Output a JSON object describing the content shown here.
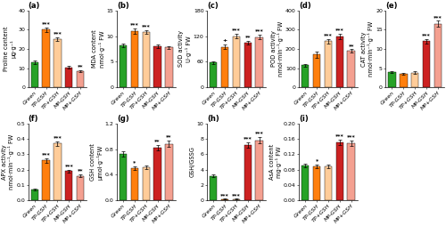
{
  "chart_data": [
    {
      "type": "bar",
      "title": "(a)",
      "y_label": "Proline content\nμg·g⁻¹",
      "categories": [
        "Green",
        "TP-GSH",
        "TP+GSH",
        "MP-GSH",
        "MP+GSH"
      ],
      "values": [
        13,
        30,
        25,
        10.5,
        8.5
      ],
      "errors": [
        0.8,
        1.0,
        1.0,
        0.5,
        0.5
      ],
      "colors": [
        "#27a227",
        "#ff7f0e",
        "#ffcc99",
        "#cc2222",
        "#f4a090"
      ],
      "ylim": [
        0,
        40
      ],
      "yticks": [
        0,
        10,
        20,
        30,
        40
      ],
      "annotations": [
        {
          "category": "TP-GSH",
          "text": "***"
        },
        {
          "category": "TP+GSH",
          "text": "***"
        },
        {
          "category": "MP+GSH",
          "text": "**"
        }
      ]
    },
    {
      "type": "bar",
      "title": "(b)",
      "y_label": "MDA content\nnmol·g⁻¹ FW",
      "categories": [
        "Green",
        "TP-GSH",
        "TP+GSH",
        "MP-GSH",
        "MP+GSH"
      ],
      "values": [
        8.2,
        11.0,
        10.8,
        8.0,
        7.8
      ],
      "errors": [
        0.4,
        0.5,
        0.4,
        0.4,
        0.3
      ],
      "colors": [
        "#27a227",
        "#ff7f0e",
        "#ffcc99",
        "#cc2222",
        "#f4a090"
      ],
      "ylim": [
        0,
        15
      ],
      "yticks": [
        0,
        5,
        10,
        15
      ],
      "annotations": [
        {
          "category": "TP-GSH",
          "text": "***"
        },
        {
          "category": "TP+GSH",
          "text": "***"
        }
      ]
    },
    {
      "type": "bar",
      "title": "(c)",
      "y_label": "SOD activity\nU·g⁻¹ FW",
      "categories": [
        "Green",
        "TP-GSH",
        "TP+GSH",
        "MP-GSH",
        "MP+GSH"
      ],
      "values": [
        58,
        95,
        120,
        105,
        118
      ],
      "errors": [
        3,
        5,
        5,
        4,
        5
      ],
      "colors": [
        "#27a227",
        "#ff7f0e",
        "#ffcc99",
        "#cc2222",
        "#f4a090"
      ],
      "ylim": [
        0,
        180
      ],
      "yticks": [
        0,
        60,
        120,
        180
      ],
      "annotations": [
        {
          "category": "TP-GSH",
          "text": "+"
        },
        {
          "category": "TP+GSH",
          "text": "***"
        },
        {
          "category": "MP-GSH",
          "text": "**"
        },
        {
          "category": "MP+GSH",
          "text": "***"
        }
      ]
    },
    {
      "type": "bar",
      "title": "(d)",
      "y_label": "POD activity\nnmol·min⁻¹·g⁻¹ FW",
      "categories": [
        "Green",
        "TP-GSH",
        "TP+GSH",
        "MP-GSH",
        "MP+GSH"
      ],
      "values": [
        115,
        170,
        240,
        265,
        190
      ],
      "errors": [
        8,
        15,
        12,
        12,
        8
      ],
      "colors": [
        "#27a227",
        "#ff7f0e",
        "#ffcc99",
        "#cc2222",
        "#f4a090"
      ],
      "ylim": [
        0,
        400
      ],
      "yticks": [
        0,
        100,
        200,
        300,
        400
      ],
      "annotations": [
        {
          "category": "TP+GSH",
          "text": "***"
        },
        {
          "category": "MP-GSH",
          "text": "***"
        },
        {
          "category": "MP+GSH",
          "text": "**"
        }
      ]
    },
    {
      "type": "bar",
      "title": "(e)",
      "y_label": "CAT activity\nnmol·min⁻¹·g⁻¹ FW",
      "categories": [
        "Green",
        "TP-GSH",
        "TP+GSH",
        "MP-GSH",
        "MP+GSH"
      ],
      "values": [
        4.0,
        3.5,
        3.8,
        12.0,
        16.5
      ],
      "errors": [
        0.3,
        0.2,
        0.3,
        0.6,
        0.8
      ],
      "colors": [
        "#27a227",
        "#ff7f0e",
        "#ffcc99",
        "#cc2222",
        "#f4a090"
      ],
      "ylim": [
        0,
        20
      ],
      "yticks": [
        0,
        5,
        10,
        15,
        20
      ],
      "annotations": [
        {
          "category": "MP-GSH",
          "text": "***"
        },
        {
          "category": "MP+GSH",
          "text": "***"
        }
      ]
    },
    {
      "type": "bar",
      "title": "(f)",
      "y_label": "APX activity\nnmol·min⁻¹·g⁻¹ FW",
      "categories": [
        "Green",
        "TP-GSH",
        "TP+GSH",
        "MP-GSH",
        "MP+GSH"
      ],
      "values": [
        0.07,
        0.26,
        0.37,
        0.19,
        0.16
      ],
      "errors": [
        0.005,
        0.015,
        0.015,
        0.01,
        0.01
      ],
      "colors": [
        "#27a227",
        "#ff7f0e",
        "#ffcc99",
        "#cc2222",
        "#f4a090"
      ],
      "ylim": [
        0,
        0.5
      ],
      "yticks": [
        0.0,
        0.1,
        0.2,
        0.3,
        0.4,
        0.5
      ],
      "annotations": [
        {
          "category": "TP-GSH",
          "text": "***"
        },
        {
          "category": "TP+GSH",
          "text": "***"
        },
        {
          "category": "MP-GSH",
          "text": "***"
        },
        {
          "category": "MP+GSH",
          "text": "**"
        }
      ]
    },
    {
      "type": "bar",
      "title": "(g)",
      "y_label": "GSH content\nμmol·g⁻¹FW",
      "categories": [
        "Green",
        "TP-GSH",
        "TP+GSH",
        "MP-GSH",
        "MP+GSH"
      ],
      "values": [
        0.72,
        0.5,
        0.52,
        0.82,
        0.88
      ],
      "errors": [
        0.04,
        0.03,
        0.03,
        0.04,
        0.05
      ],
      "colors": [
        "#27a227",
        "#ff7f0e",
        "#ffcc99",
        "#cc2222",
        "#f4a090"
      ],
      "ylim": [
        0,
        1.2
      ],
      "yticks": [
        0.0,
        0.4,
        0.8,
        1.2
      ],
      "annotations": [
        {
          "category": "TP-GSH",
          "text": "*"
        },
        {
          "category": "MP-GSH",
          "text": "**"
        },
        {
          "category": "MP+GSH",
          "text": "**"
        }
      ]
    },
    {
      "type": "bar",
      "title": "(h)",
      "y_label": "GSH/GSSG",
      "categories": [
        "Green",
        "TP-GSH",
        "TP+GSH",
        "MP-GSH",
        "MP+GSH"
      ],
      "values": [
        3.2,
        0.15,
        0.15,
        7.2,
        7.8
      ],
      "errors": [
        0.2,
        0.05,
        0.05,
        0.4,
        0.4
      ],
      "colors": [
        "#27a227",
        "#ff7f0e",
        "#ffcc99",
        "#cc2222",
        "#f4a090"
      ],
      "ylim": [
        0,
        10
      ],
      "yticks": [
        0,
        2,
        4,
        6,
        8,
        10
      ],
      "annotations": [
        {
          "category": "TP-GSH",
          "text": "***"
        },
        {
          "category": "TP+GSH",
          "text": "***"
        },
        {
          "category": "MP-GSH",
          "text": "***"
        },
        {
          "category": "MP+GSH",
          "text": "***"
        }
      ]
    },
    {
      "type": "bar",
      "title": "(i)",
      "y_label": "AsA content\nmg·g⁻¹ FW",
      "categories": [
        "Green",
        "TP-GSH",
        "TP+GSH",
        "MP-GSH",
        "MP+GSH"
      ],
      "values": [
        0.09,
        0.088,
        0.088,
        0.15,
        0.148
      ],
      "errors": [
        0.005,
        0.005,
        0.005,
        0.007,
        0.007
      ],
      "colors": [
        "#27a227",
        "#ff7f0e",
        "#ffcc99",
        "#cc2222",
        "#f4a090"
      ],
      "ylim": [
        0,
        0.2
      ],
      "yticks": [
        {
          "value": 0.0,
          "label": "0.00"
        },
        {
          "value": 0.04,
          "label": "0.04"
        },
        {
          "value": 0.08,
          "label": "0.08"
        },
        {
          "value": 0.12,
          "label": "0.12"
        },
        {
          "value": 0.16,
          "label": "0.16"
        },
        {
          "value": 0.2,
          "label": "0.20"
        }
      ],
      "annotations": [
        {
          "category": "TP-GSH",
          "text": "*"
        },
        {
          "category": "MP-GSH",
          "text": "***"
        },
        {
          "category": "MP+GSH",
          "text": "***"
        }
      ]
    }
  ]
}
